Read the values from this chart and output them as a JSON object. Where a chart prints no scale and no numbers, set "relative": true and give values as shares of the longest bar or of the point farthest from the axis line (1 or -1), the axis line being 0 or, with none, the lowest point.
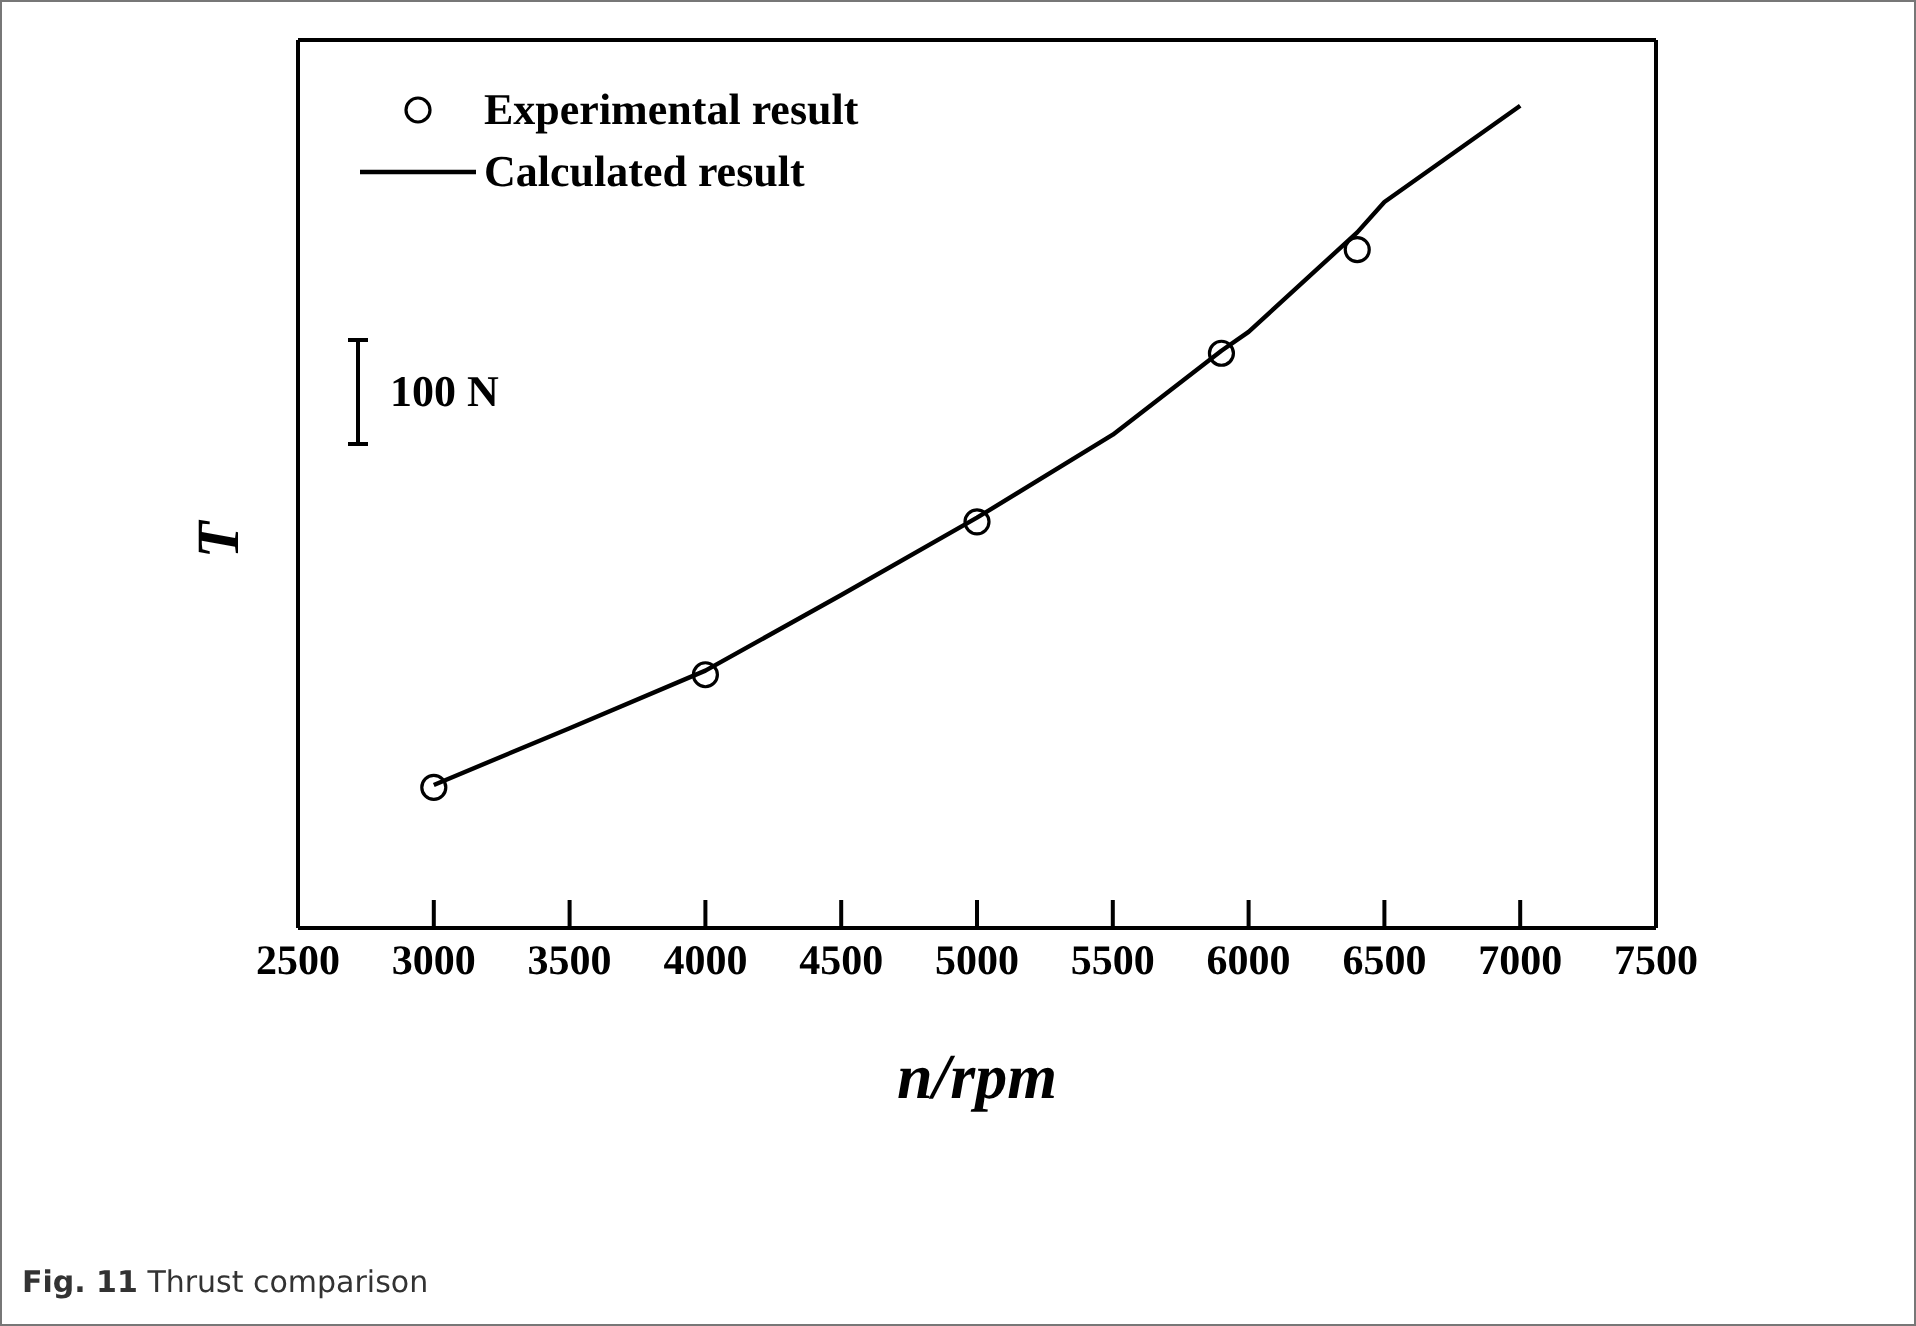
{
  "chart_data": {
    "type": "scatter",
    "relative": true,
    "xlabel": "n/rpm",
    "ylabel": "T",
    "xlim": [
      2500,
      7500
    ],
    "xticks": [
      2500,
      3000,
      3500,
      4000,
      4500,
      5000,
      5500,
      6000,
      6500,
      7000,
      7500
    ],
    "legend": "top left",
    "series": [
      {
        "name": "Experimental result",
        "marker": "circle",
        "color": "#000000",
        "x": [
          3000,
          4000,
          5000,
          5900,
          6400
        ],
        "values": [
          0.171,
          0.308,
          0.494,
          0.699,
          0.825
        ]
      },
      {
        "name": "Calculated result",
        "type": "line",
        "marker": "none",
        "line_style": "solid",
        "color": "#000000",
        "x": [
          3000,
          3500,
          4000,
          4500,
          5000,
          5500,
          5900,
          6000,
          6400,
          6500,
          7000
        ],
        "values": [
          0.174,
          0.243,
          0.313,
          0.405,
          0.499,
          0.6,
          0.702,
          0.725,
          0.846,
          0.883,
          1.0
        ]
      }
    ],
    "annotations": [
      "100 N",
      "Fig. 11 Thrust comparison"
    ]
  }
}
